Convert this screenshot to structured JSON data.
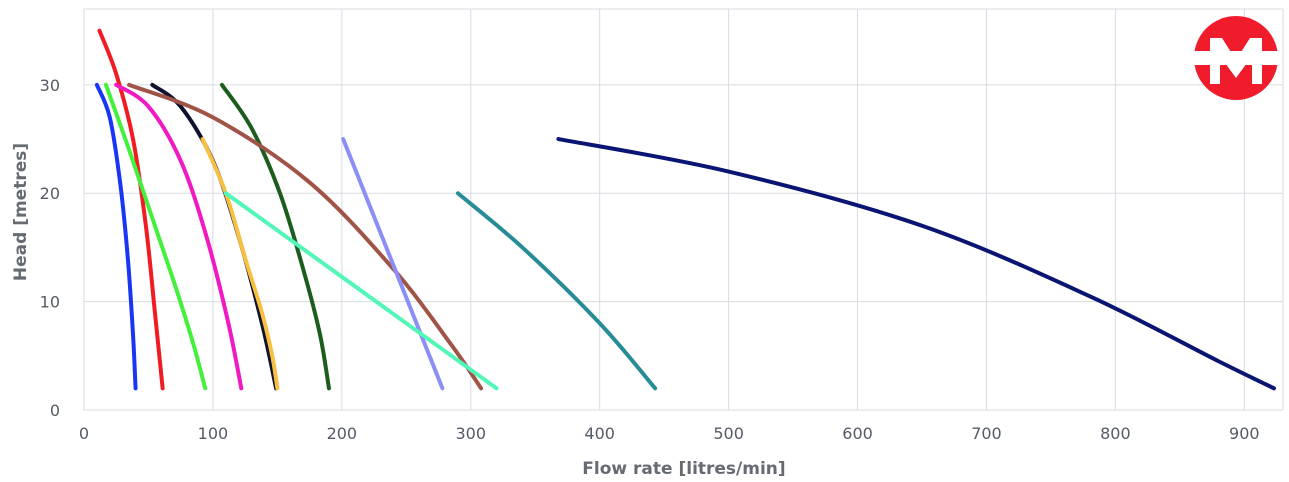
{
  "chart_data": {
    "type": "line",
    "title": "",
    "xlabel": "Flow rate [litres/min]",
    "ylabel": "Head [metres]",
    "xlim": [
      0,
      930
    ],
    "ylim": [
      0,
      37
    ],
    "x_ticks": [
      "0",
      "100",
      "200",
      "300",
      "400",
      "500",
      "600",
      "700",
      "800",
      "900"
    ],
    "y_ticks": [
      "0",
      "10",
      "20",
      "30"
    ],
    "grid": true,
    "legend": "none",
    "series": [
      {
        "color": "#1a36f5",
        "x": [
          10,
          20,
          28,
          34,
          38,
          40
        ],
        "y": [
          30,
          27,
          21,
          14,
          7,
          2
        ]
      },
      {
        "color": "#f01c22",
        "x": [
          12,
          25,
          38,
          48,
          55,
          61
        ],
        "y": [
          35,
          31,
          25,
          17,
          9,
          2
        ]
      },
      {
        "color": "#44f03c",
        "x": [
          17,
          35,
          55,
          72,
          85,
          94
        ],
        "y": [
          30,
          24,
          17,
          11,
          6,
          2
        ]
      },
      {
        "color": "#f019c2",
        "x": [
          25,
          50,
          75,
          95,
          112,
          122
        ],
        "y": [
          30,
          28,
          23,
          16,
          8,
          2
        ]
      },
      {
        "color": "#101230",
        "x": [
          53,
          75,
          100,
          120,
          138,
          149
        ],
        "y": [
          30,
          28,
          23,
          16,
          8,
          2
        ]
      },
      {
        "color": "#f7c040",
        "x": [
          92,
          110,
          125,
          138,
          146,
          150
        ],
        "y": [
          25,
          20,
          14,
          9,
          5,
          2
        ]
      },
      {
        "color": "#1c5c1c",
        "x": [
          107,
          130,
          152,
          170,
          183,
          190
        ],
        "y": [
          30,
          26,
          20,
          13,
          7,
          2
        ]
      },
      {
        "color": "#a05448",
        "x": [
          35,
          100,
          175,
          240,
          285,
          308
        ],
        "y": [
          30,
          27,
          21,
          13,
          6,
          2
        ]
      },
      {
        "color": "#8c8ef8",
        "x": [
          201,
          278
        ],
        "y": [
          25,
          2
        ]
      },
      {
        "color": "#52f7b8",
        "x": [
          110,
          320
        ],
        "y": [
          20,
          2
        ]
      },
      {
        "color": "#288c96",
        "x": [
          290,
          340,
          400,
          443
        ],
        "y": [
          20,
          15,
          8,
          2
        ]
      },
      {
        "color": "#0a1472",
        "x": [
          368,
          500,
          650,
          780,
          880,
          923
        ],
        "y": [
          25,
          22,
          17,
          10.5,
          4.5,
          2
        ]
      }
    ]
  },
  "logo": {
    "letter": "M",
    "color": "#f01c2c"
  }
}
